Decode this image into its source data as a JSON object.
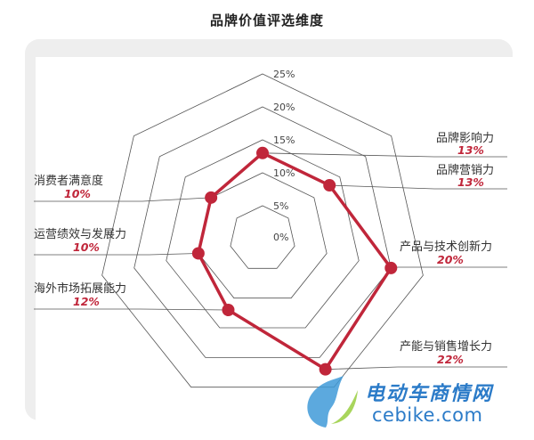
{
  "chart_data": {
    "type": "radar",
    "title": "品牌价值评选维度",
    "axis_ticks": [
      "0%",
      "5%",
      "10%",
      "15%",
      "20%",
      "25%"
    ],
    "rmax": 25,
    "series_color": "#c0263a",
    "categories": [
      "品牌影响力",
      "品牌营销力",
      "产品与技术创新力",
      "产能与销售增长力",
      "海外市场拓展能力",
      "运营绩效与发展力",
      "消费者满意度"
    ],
    "value_labels": [
      "13%",
      "13%",
      "20%",
      "22%",
      "12%",
      "10%",
      "10%"
    ],
    "values": [
      13,
      13,
      20,
      22,
      12,
      10,
      10
    ]
  },
  "watermark": {
    "cn": "电动车商情网",
    "en": "cebike.com"
  }
}
